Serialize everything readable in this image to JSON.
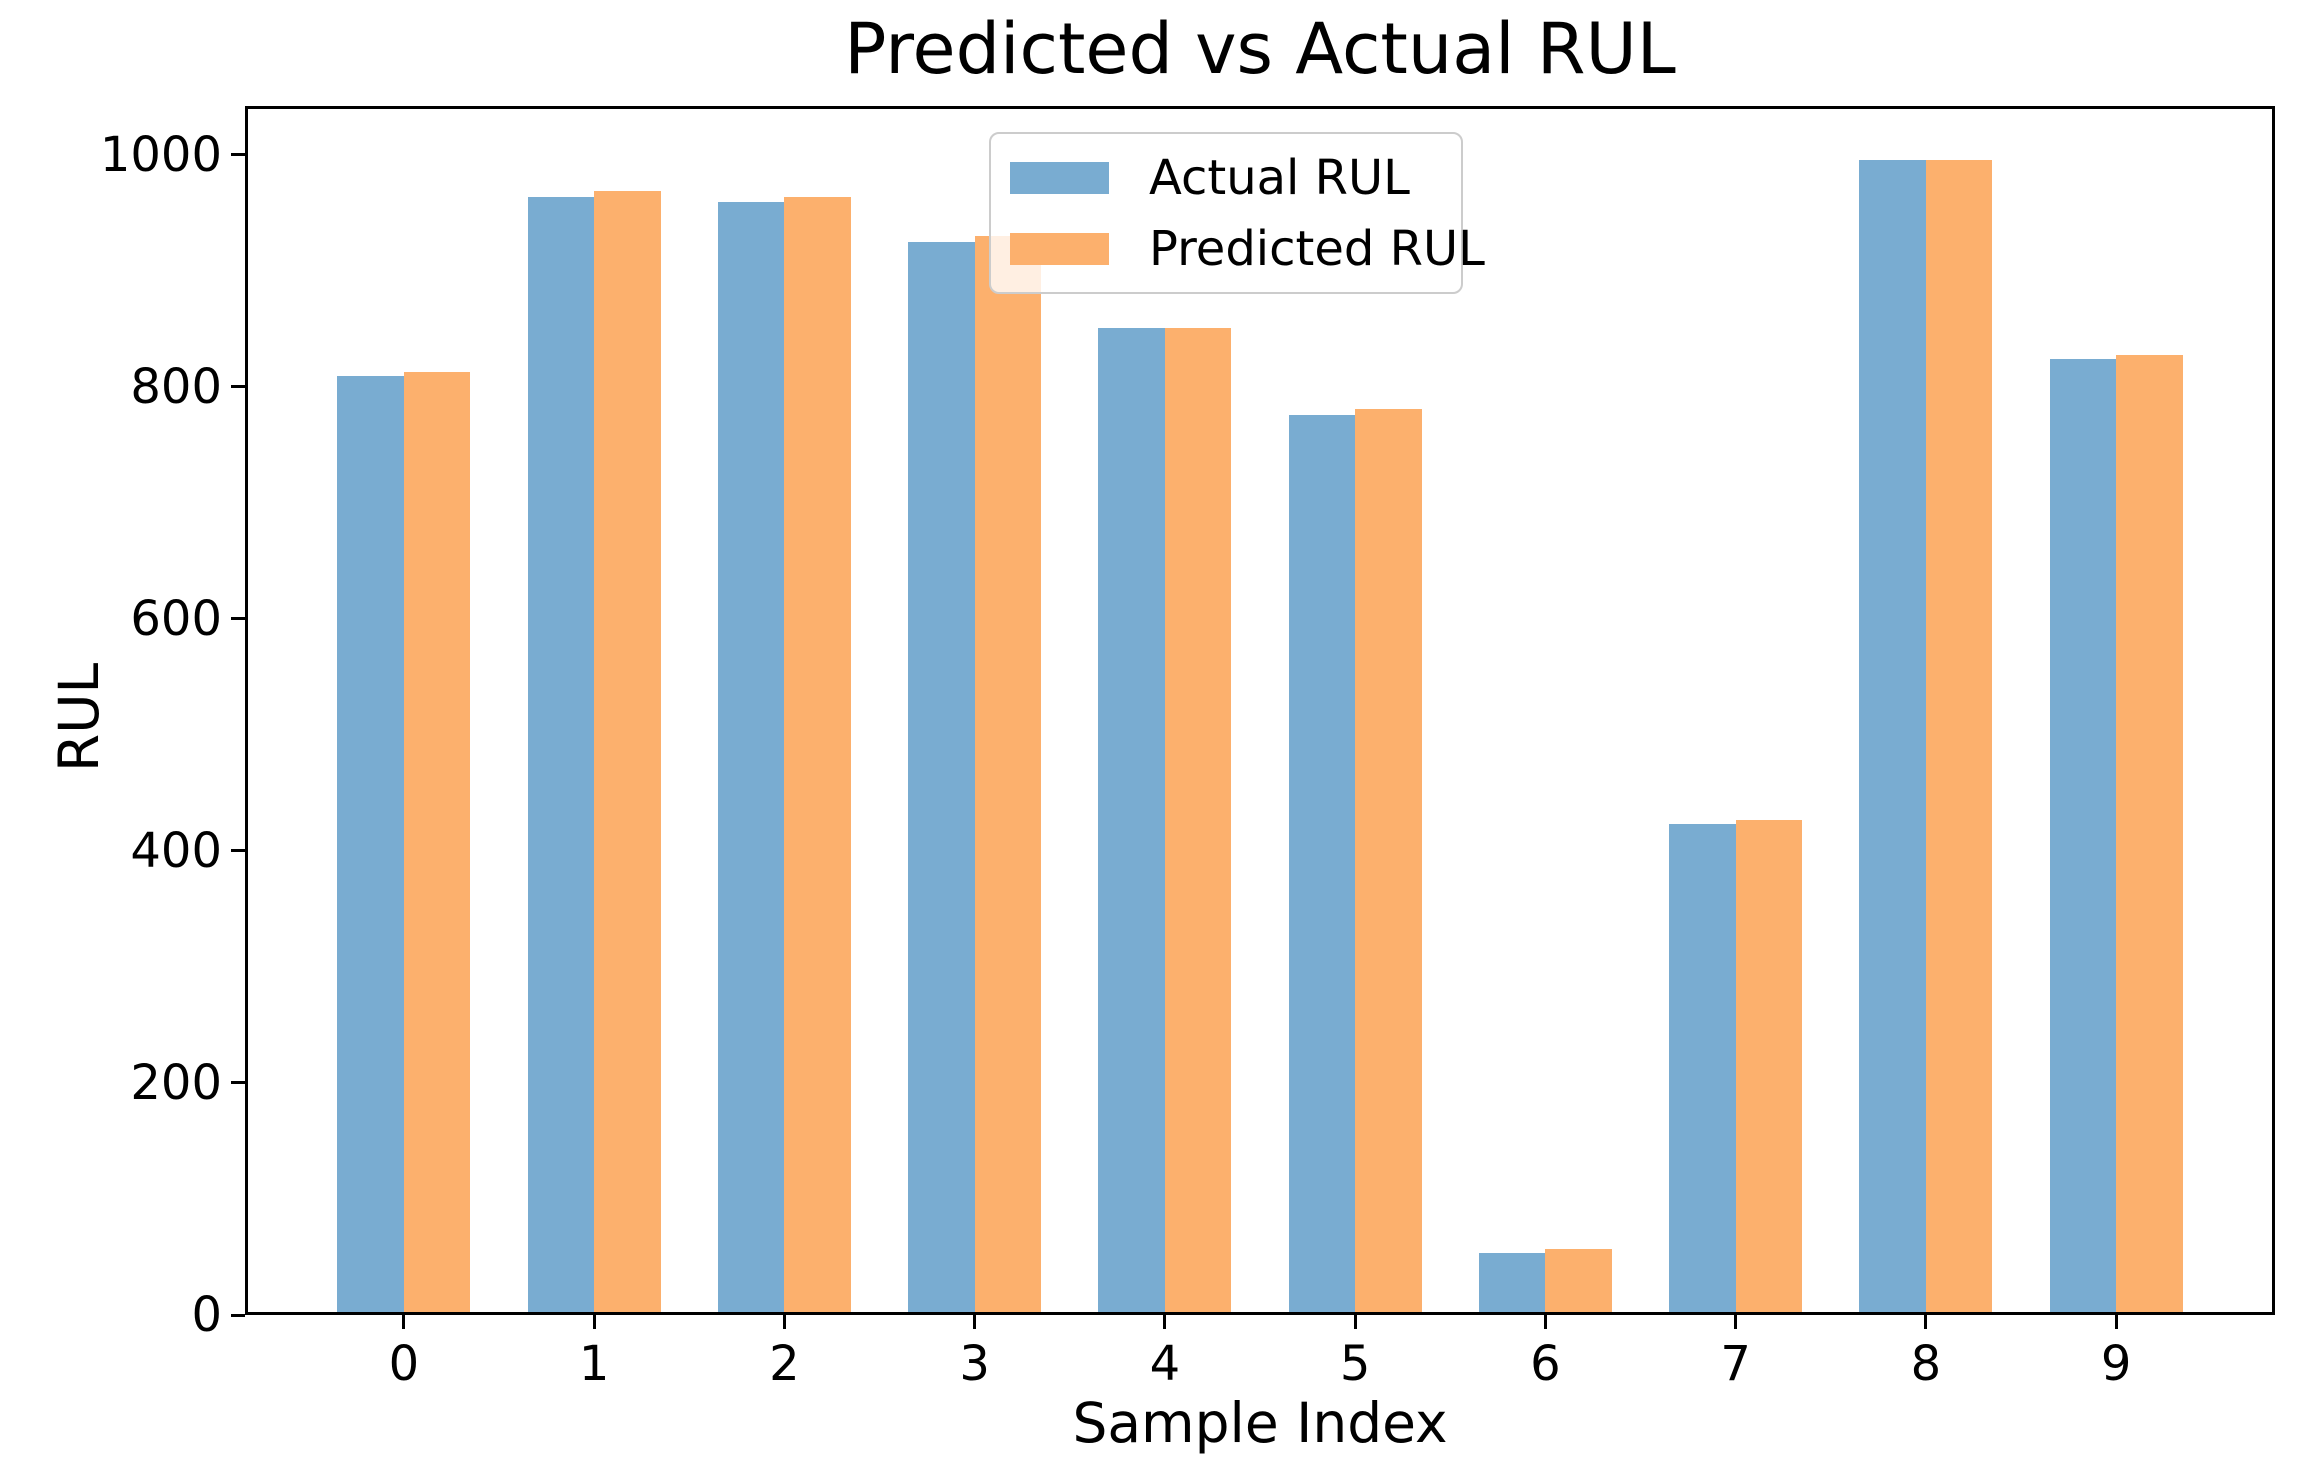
{
  "chart_data": {
    "type": "bar",
    "title": "Predicted vs Actual RUL",
    "xlabel": "Sample Index",
    "ylabel": "RUL",
    "categories": [
      "0",
      "1",
      "2",
      "3",
      "4",
      "5",
      "6",
      "7",
      "8",
      "9"
    ],
    "series": [
      {
        "name": "Actual RUL",
        "color": "#79acd1",
        "values": [
          807,
          961,
          957,
          922,
          848,
          773,
          51,
          421,
          993,
          821
        ]
      },
      {
        "name": "Predicted RUL",
        "color": "#fcb06d",
        "values": [
          810,
          966,
          961,
          927,
          848,
          778,
          54,
          424,
          993,
          825
        ]
      }
    ],
    "ylim": [
      0,
      1042
    ],
    "yticks": [
      0,
      200,
      400,
      600,
      800,
      1000
    ],
    "bar_width": 0.35,
    "grid": false,
    "legend_position": "upper center",
    "axis_color": "#000000",
    "legend_border_color": "#cccccc"
  }
}
